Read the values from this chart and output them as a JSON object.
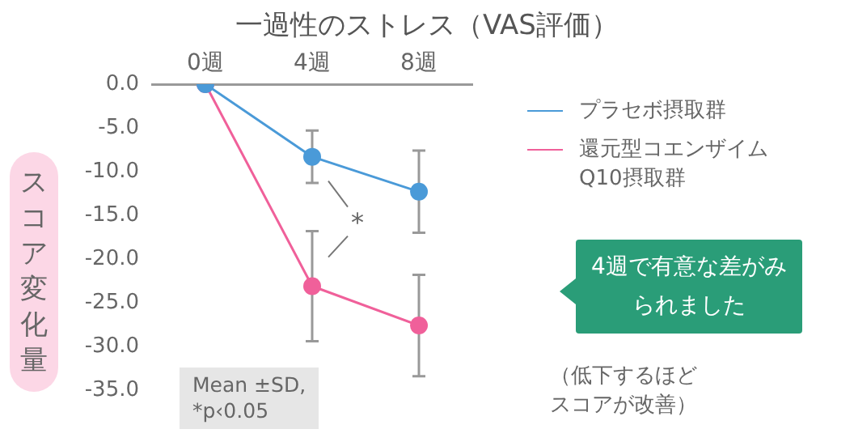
{
  "chart_data": {
    "type": "line",
    "title": "一過性のストレス（VAS評価）",
    "ylabel": "スコア変化量",
    "categories": [
      "0週",
      "4週",
      "8週"
    ],
    "series": [
      {
        "name": "プラセボ摂取群",
        "color": "#4a9ad8",
        "values": [
          0,
          -8.3,
          -12.3
        ],
        "errors": [
          null,
          3.0,
          4.7
        ]
      },
      {
        "name": "還元型コエンザイムQ10摂取群",
        "color": "#f0609a",
        "values": [
          0,
          -23.1,
          -27.6
        ],
        "errors": [
          null,
          6.3,
          5.8
        ]
      }
    ],
    "ylim": [
      -35,
      0
    ],
    "yticks": [
      {
        "value": 0,
        "label": "0.0"
      },
      {
        "value": -5,
        "label": "-5.0"
      },
      {
        "value": -10,
        "label": "-10.0"
      },
      {
        "value": -15,
        "label": "-15.0"
      },
      {
        "value": -20,
        "label": "-20.0"
      },
      {
        "value": -25,
        "label": "-25.0"
      },
      {
        "value": -30,
        "label": "-30.0"
      },
      {
        "value": -35,
        "label": "-35.0"
      }
    ],
    "grid": false,
    "legend": "right",
    "marker": "circle",
    "annotations": [
      "*",
      "Mean ±SD,\n*p‹0.05",
      "4週で有意な差がみられました",
      "（低下するほどスコアが改善）"
    ]
  }
}
